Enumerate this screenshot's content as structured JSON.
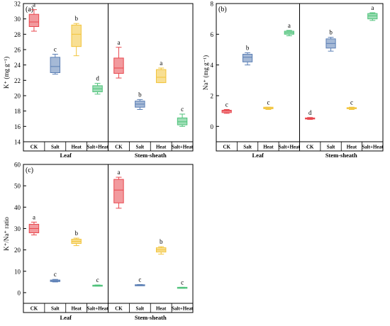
{
  "chart_data": [
    {
      "type": "box",
      "panel_label": "(a)",
      "ylabel": "K⁺ (mg g⁻¹)",
      "ylim": [
        14,
        32
      ],
      "yticks": [
        14,
        16,
        18,
        20,
        22,
        24,
        26,
        28,
        30,
        32
      ],
      "groups": [
        "Leaf",
        "Stem-sheath"
      ],
      "categories": [
        "CK",
        "Salt",
        "Heat",
        "Salt+Heat"
      ],
      "series": [
        {
          "group": "Leaf",
          "category": "CK",
          "min": 28.4,
          "q1": 29.0,
          "median": 29.6,
          "q3": 30.6,
          "max": 31.2,
          "letter": "a"
        },
        {
          "group": "Leaf",
          "category": "Salt",
          "min": 22.8,
          "q1": 23.0,
          "median": 23.8,
          "q3": 25.0,
          "max": 25.4,
          "letter": "c"
        },
        {
          "group": "Leaf",
          "category": "Heat",
          "min": 25.2,
          "q1": 26.4,
          "median": 28.0,
          "q3": 29.2,
          "max": 29.4,
          "letter": "b"
        },
        {
          "group": "Leaf",
          "category": "Salt+Heat",
          "min": 20.2,
          "q1": 20.5,
          "median": 20.9,
          "q3": 21.3,
          "max": 21.6,
          "letter": "d"
        },
        {
          "group": "Stem-sheath",
          "category": "CK",
          "min": 22.3,
          "q1": 22.9,
          "median": 23.6,
          "q3": 24.9,
          "max": 26.3,
          "letter": "a"
        },
        {
          "group": "Stem-sheath",
          "category": "Salt",
          "min": 18.2,
          "q1": 18.5,
          "median": 18.9,
          "q3": 19.3,
          "max": 19.5,
          "letter": "b"
        },
        {
          "group": "Stem-sheath",
          "category": "Heat",
          "min": 21.7,
          "q1": 21.7,
          "median": 22.4,
          "q3": 23.4,
          "max": 23.6,
          "letter": "a"
        },
        {
          "group": "Stem-sheath",
          "category": "Salt+Heat",
          "min": 16.0,
          "q1": 16.2,
          "median": 16.6,
          "q3": 17.1,
          "max": 17.6,
          "letter": "c"
        }
      ],
      "colors": {
        "CK": "#e8474e",
        "Salt": "#5b7fb5",
        "Heat": "#f2c43a",
        "Salt+Heat": "#4ec27a"
      }
    },
    {
      "type": "box",
      "panel_label": "(b)",
      "ylabel": "Na⁺ (mg g⁻¹)",
      "ylim": [
        -1,
        8
      ],
      "yticks": [
        0,
        2,
        4,
        6,
        8
      ],
      "groups": [
        "Leaf",
        "Stem-sheath"
      ],
      "categories": [
        "CK",
        "Salt",
        "Heat",
        "Salt+Heat"
      ],
      "series": [
        {
          "group": "Leaf",
          "category": "CK",
          "min": 0.85,
          "q1": 0.9,
          "median": 1.0,
          "q3": 1.05,
          "max": 1.1,
          "letter": "c"
        },
        {
          "group": "Leaf",
          "category": "Salt",
          "min": 4.0,
          "q1": 4.2,
          "median": 4.5,
          "q3": 4.7,
          "max": 4.8,
          "letter": "b"
        },
        {
          "group": "Leaf",
          "category": "Heat",
          "min": 1.1,
          "q1": 1.15,
          "median": 1.2,
          "q3": 1.25,
          "max": 1.25,
          "letter": "c"
        },
        {
          "group": "Leaf",
          "category": "Salt+Heat",
          "min": 5.9,
          "q1": 6.0,
          "median": 6.1,
          "q3": 6.2,
          "max": 6.25,
          "letter": "a"
        },
        {
          "group": "Stem-sheath",
          "category": "CK",
          "min": 0.45,
          "q1": 0.5,
          "median": 0.52,
          "q3": 0.55,
          "max": 0.58,
          "letter": "d"
        },
        {
          "group": "Stem-sheath",
          "category": "Salt",
          "min": 4.9,
          "q1": 5.1,
          "median": 5.4,
          "q3": 5.7,
          "max": 5.8,
          "letter": "b"
        },
        {
          "group": "Stem-sheath",
          "category": "Heat",
          "min": 1.1,
          "q1": 1.15,
          "median": 1.2,
          "q3": 1.22,
          "max": 1.25,
          "letter": "c"
        },
        {
          "group": "Stem-sheath",
          "category": "Salt+Heat",
          "min": 6.9,
          "q1": 7.0,
          "median": 7.2,
          "q3": 7.35,
          "max": 7.4,
          "letter": "a"
        }
      ],
      "colors": {
        "CK": "#e8474e",
        "Salt": "#5b7fb5",
        "Heat": "#f2c43a",
        "Salt+Heat": "#4ec27a"
      }
    },
    {
      "type": "box",
      "panel_label": "(c)",
      "ylabel": "K⁺/Na⁺ ratio",
      "ylim": [
        -5,
        60
      ],
      "yticks": [
        0,
        10,
        20,
        30,
        40,
        50,
        60
      ],
      "groups": [
        "Leaf",
        "Stem-sheath"
      ],
      "categories": [
        "CK",
        "Salt",
        "Heat",
        "Salt+Heat"
      ],
      "series": [
        {
          "group": "Leaf",
          "category": "CK",
          "min": 27.0,
          "q1": 28.0,
          "median": 30.0,
          "q3": 32.0,
          "max": 33.0,
          "letter": "a"
        },
        {
          "group": "Leaf",
          "category": "Salt",
          "min": 5.0,
          "q1": 5.2,
          "median": 5.5,
          "q3": 5.9,
          "max": 6.2,
          "letter": "c"
        },
        {
          "group": "Leaf",
          "category": "Heat",
          "min": 22.0,
          "q1": 23.0,
          "median": 24.0,
          "q3": 25.0,
          "max": 25.5,
          "letter": "b"
        },
        {
          "group": "Leaf",
          "category": "Salt+Heat",
          "min": 3.2,
          "q1": 3.3,
          "median": 3.4,
          "q3": 3.5,
          "max": 3.6,
          "letter": "c"
        },
        {
          "group": "Stem-sheath",
          "category": "CK",
          "min": 39.5,
          "q1": 42.0,
          "median": 48.0,
          "q3": 53.0,
          "max": 54.0,
          "letter": "a"
        },
        {
          "group": "Stem-sheath",
          "category": "Salt",
          "min": 3.3,
          "q1": 3.4,
          "median": 3.5,
          "q3": 3.7,
          "max": 3.8,
          "letter": "c"
        },
        {
          "group": "Stem-sheath",
          "category": "Heat",
          "min": 18.0,
          "q1": 19.0,
          "median": 20.0,
          "q3": 21.0,
          "max": 21.5,
          "letter": "b"
        },
        {
          "group": "Stem-sheath",
          "category": "Salt+Heat",
          "min": 2.2,
          "q1": 2.3,
          "median": 2.4,
          "q3": 2.5,
          "max": 2.5,
          "letter": "c"
        }
      ],
      "colors": {
        "CK": "#e8474e",
        "Salt": "#5b7fb5",
        "Heat": "#f2c43a",
        "Salt+Heat": "#4ec27a"
      }
    }
  ]
}
